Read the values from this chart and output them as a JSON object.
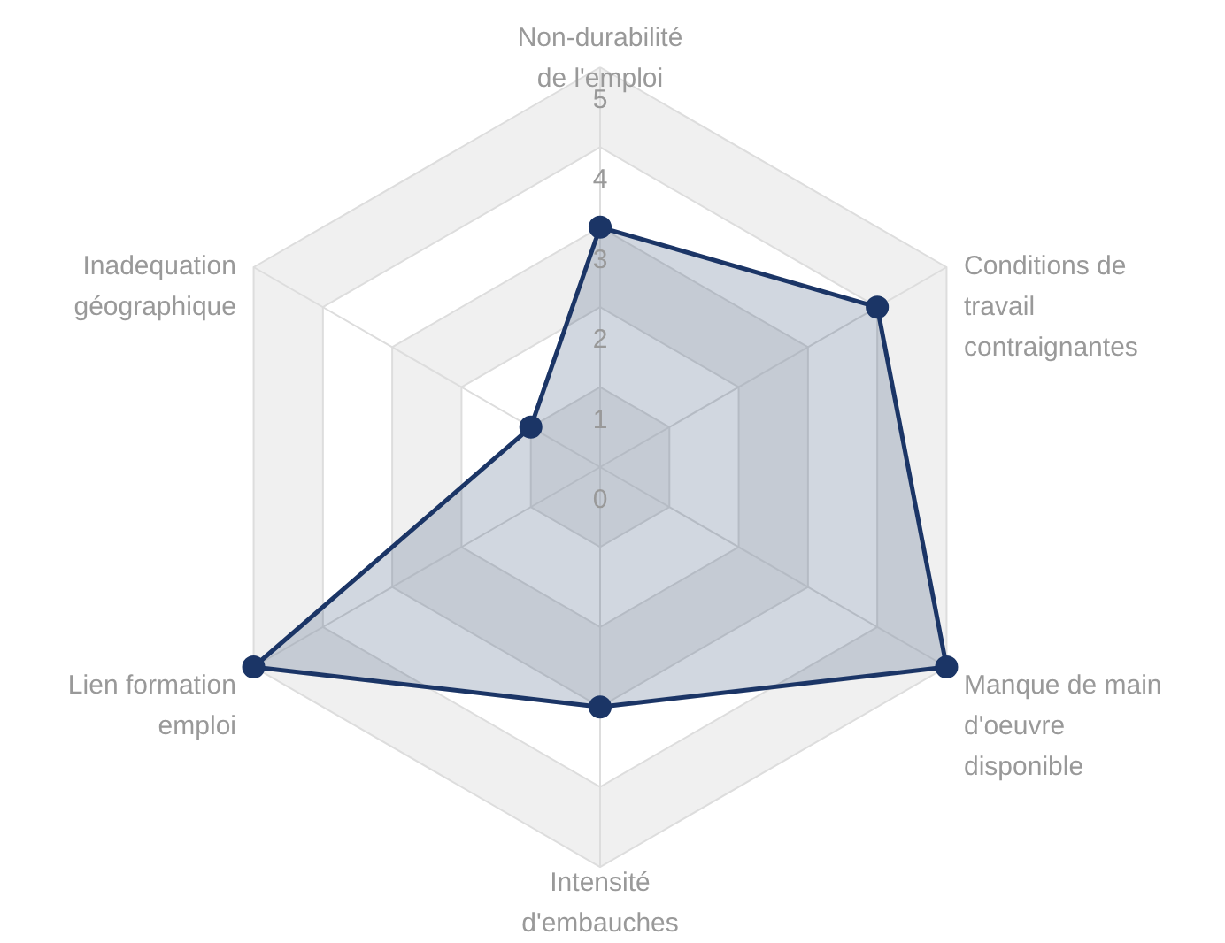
{
  "chart_data": {
    "type": "radar",
    "categories": [
      "Non-durabilité de l'emploi",
      "Conditions de travail contraignantes",
      "Manque de main d'oeuvre disponible",
      "Intensité d'embauches",
      "Lien formation emploi",
      "Inadequation géographique"
    ],
    "series": [
      {
        "color": "#1b3566",
        "values": [
          3,
          4,
          5,
          3,
          5,
          1
        ]
      }
    ],
    "ylim": [
      0,
      5
    ],
    "yticks": [
      0,
      1,
      2,
      3,
      4,
      5
    ],
    "grid": true,
    "marker": "circle"
  }
}
